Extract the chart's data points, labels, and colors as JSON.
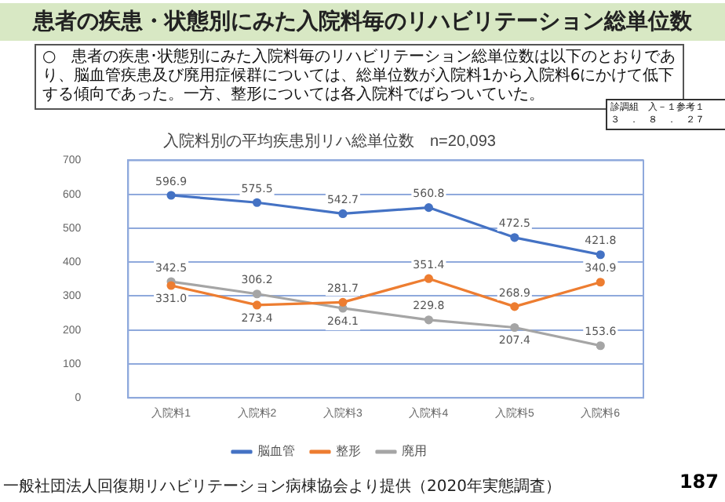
{
  "chart_data": {
    "type": "line",
    "title": "患者の疾患・状態別にみた入院料毎のリハビリテーション総単位数",
    "subtitle": "入院料別の平均疾患別リハ総単位数　n=20,093",
    "categories": [
      "入院料1",
      "入院料2",
      "入院料3",
      "入院料4",
      "入院料5",
      "入院料6"
    ],
    "series": [
      {
        "name": "脳血管",
        "color": "#4472c4",
        "values": [
          596.9,
          575.5,
          542.7,
          560.8,
          472.5,
          421.8
        ],
        "value_labels": [
          "596.9",
          "575.5",
          "542.7",
          "560.8",
          "472.5",
          "421.8"
        ]
      },
      {
        "name": "整形",
        "color": "#ed7d31",
        "values": [
          331.0,
          273.4,
          281.7,
          351.4,
          268.9,
          340.9
        ],
        "value_labels": [
          "331.0",
          "273.4",
          "281.7",
          "351.4",
          "268.9",
          "340.9"
        ]
      },
      {
        "name": "廃用",
        "color": "#a5a5a5",
        "values": [
          342.5,
          306.2,
          264.1,
          229.8,
          207.4,
          153.6
        ],
        "value_labels": [
          "342.5",
          "306.2",
          "264.1",
          "229.8",
          "207.4",
          "153.6"
        ]
      }
    ],
    "ylim": [
      0,
      700
    ],
    "yticks": [
      0,
      100,
      200,
      300,
      400,
      500,
      600,
      700
    ],
    "grid": "y",
    "legend": "bottom",
    "marker": "circle",
    "line_style": "solid",
    "annotations": [
      "○　患者の疾患･状態別にみた入院料毎のリハビリテーション総単位数は以下のとおりであり、脳血管疾患及び廃用症候群については、総単位数が入院料1から入院料6にかけて低下する傾向であった。一方、整形については各入院料でばらついていた。",
      "診調組　入－１参考１",
      "３　．　８　．　２７",
      "一般社団法人回復期リハビリテーション病棟協会より提供（2020年実態調査）",
      "187"
    ]
  }
}
